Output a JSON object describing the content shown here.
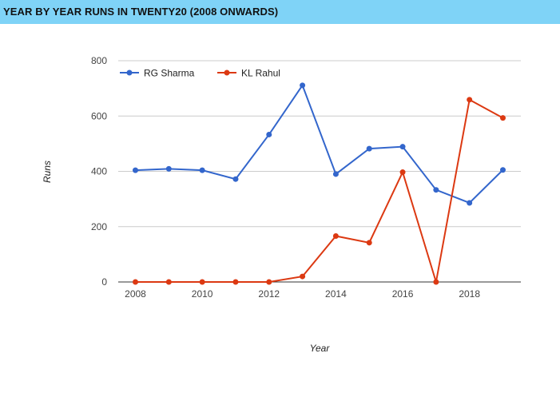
{
  "header": {
    "title": "YEAR BY YEAR RUNS IN TWENTY20 (2008 ONWARDS)"
  },
  "chart_data": {
    "type": "line",
    "title": "YEAR BY YEAR RUNS IN TWENTY20 (2008 ONWARDS)",
    "xlabel": "Year",
    "ylabel": "Runs",
    "x": [
      2008,
      2009,
      2010,
      2011,
      2012,
      2013,
      2014,
      2015,
      2016,
      2017,
      2018,
      2019
    ],
    "x_ticks": [
      "2008",
      "2010",
      "2012",
      "2014",
      "2016",
      "2018"
    ],
    "y_ticks": [
      "0",
      "200",
      "400",
      "600",
      "800"
    ],
    "xlim": [
      2008,
      2019
    ],
    "ylim": [
      0,
      800
    ],
    "grid": true,
    "legend_position": "top-left",
    "series": [
      {
        "name": "RG Sharma",
        "color": "#3366cc",
        "values": [
          404,
          409,
          404,
          372,
          533,
          711,
          390,
          482,
          489,
          333,
          286,
          405
        ]
      },
      {
        "name": "KL Rahul",
        "color": "#dc3912",
        "values": [
          0,
          0,
          0,
          0,
          0,
          20,
          166,
          142,
          397,
          0,
          659,
          593
        ]
      }
    ]
  }
}
